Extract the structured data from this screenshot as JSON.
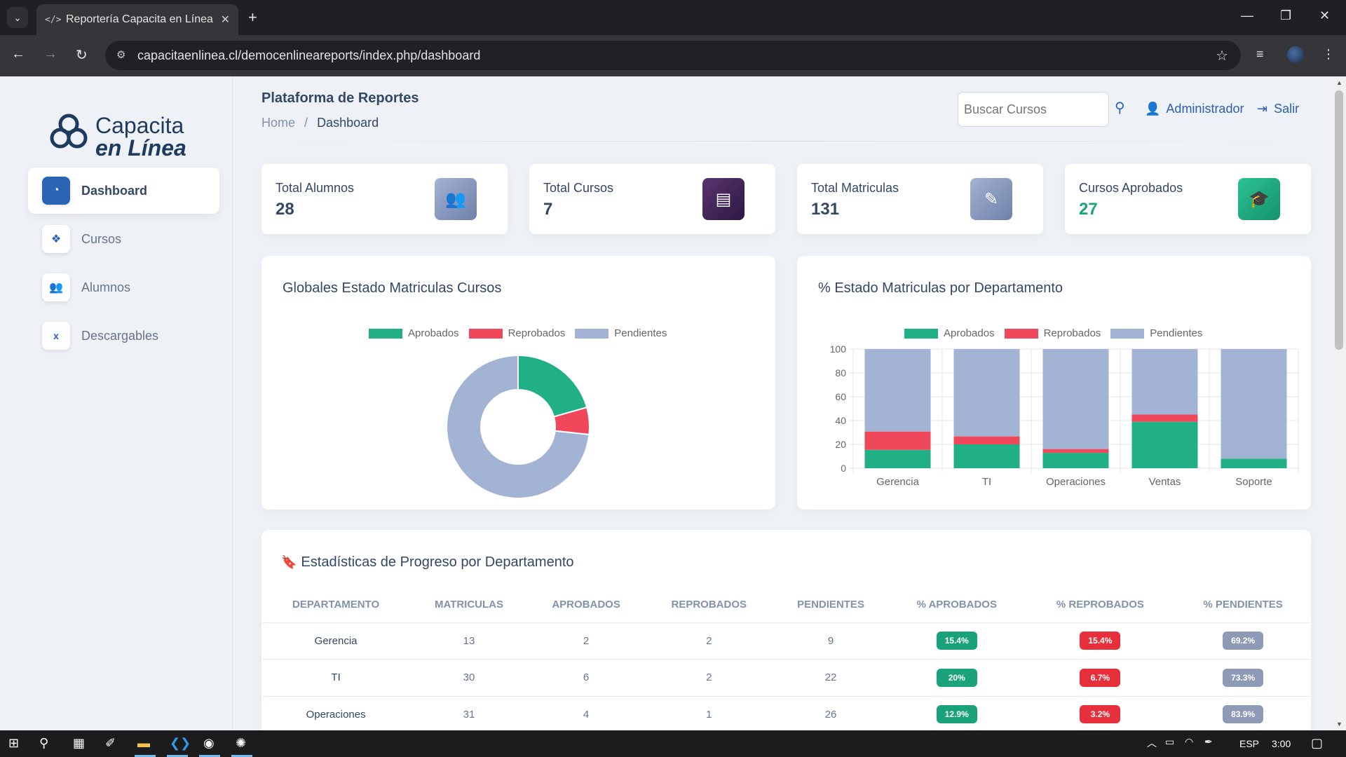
{
  "browser": {
    "tab_title": "Reportería Capacita en Línea",
    "url": "capacitaenlinea.cl/democenlineareports/index.php/dashboard"
  },
  "sidebar": {
    "logo_line1": "Capacita",
    "logo_line2": "en Línea",
    "items": [
      {
        "label": "Dashboard",
        "icon": "gauge-icon",
        "active": true
      },
      {
        "label": "Cursos",
        "icon": "cubes-icon"
      },
      {
        "label": "Alumnos",
        "icon": "users-icon"
      },
      {
        "label": "Descargables",
        "icon": "excel-file-icon"
      }
    ]
  },
  "header": {
    "title": "Plataforma de Reportes",
    "breadcrumb_home": "Home",
    "breadcrumb_sep": "/",
    "breadcrumb_current": "Dashboard",
    "search_placeholder": "Buscar Cursos",
    "user": "Administrador",
    "logout": "Salir"
  },
  "stats": [
    {
      "label": "Total Alumnos",
      "value": "28",
      "color": "#8a9bc0"
    },
    {
      "label": "Total Cursos",
      "value": "7",
      "color": "#4a2a5e"
    },
    {
      "label": "Total Matriculas",
      "value": "131",
      "color": "#8a9bc0"
    },
    {
      "label": "Cursos Aprobados",
      "value": "27",
      "color": "#1aa37a"
    }
  ],
  "donut_card": {
    "title": "Globales Estado Matriculas Cursos"
  },
  "bar_card": {
    "title": "% Estado Matriculas por Departamento"
  },
  "legend": [
    "Aprobados",
    "Reprobados",
    "Pendientes"
  ],
  "colors": {
    "aprobados": "#21b086",
    "reprobados": "#f0485b",
    "pendientes": "#a3b3d4"
  },
  "chart_data": [
    {
      "type": "pie",
      "title": "Globales Estado Matriculas Cursos",
      "labels": [
        "Aprobados",
        "Reprobados",
        "Pendientes"
      ],
      "values": [
        27,
        8,
        96
      ],
      "legend": "top"
    },
    {
      "type": "bar",
      "stacked": true,
      "title": "% Estado Matriculas por Departamento",
      "categories": [
        "Gerencia",
        "TI",
        "Operaciones",
        "Ventas",
        "Soporte"
      ],
      "series": [
        {
          "name": "Aprobados",
          "values": [
            15.4,
            20,
            12.9,
            39,
            8
          ]
        },
        {
          "name": "Reprobados",
          "values": [
            15.4,
            6.7,
            3.2,
            6,
            0
          ]
        },
        {
          "name": "Pendientes",
          "values": [
            69.2,
            73.3,
            83.9,
            55,
            92
          ]
        }
      ],
      "ylim": [
        0,
        100
      ],
      "yticks": [
        "0",
        "20",
        "40",
        "60",
        "80",
        "100"
      ],
      "grid": true,
      "legend": "top"
    }
  ],
  "table": {
    "title": "Estadísticas de Progreso por Departamento",
    "headers": [
      "DEPARTAMENTO",
      "MATRICULAS",
      "APROBADOS",
      "REPROBADOS",
      "PENDIENTES",
      "% APROBADOS",
      "% REPROBADOS",
      "% PENDIENTES"
    ],
    "rows": [
      [
        "Gerencia",
        "13",
        "2",
        "2",
        "9",
        "15.4%",
        "15.4%",
        "69.2%"
      ],
      [
        "TI",
        "30",
        "6",
        "2",
        "22",
        "20%",
        "6.7%",
        "73.3%"
      ],
      [
        "Operaciones",
        "31",
        "4",
        "1",
        "26",
        "12.9%",
        "3.2%",
        "83.9%"
      ]
    ]
  },
  "taskbar": {
    "lang": "ESP",
    "time": "3:00"
  }
}
